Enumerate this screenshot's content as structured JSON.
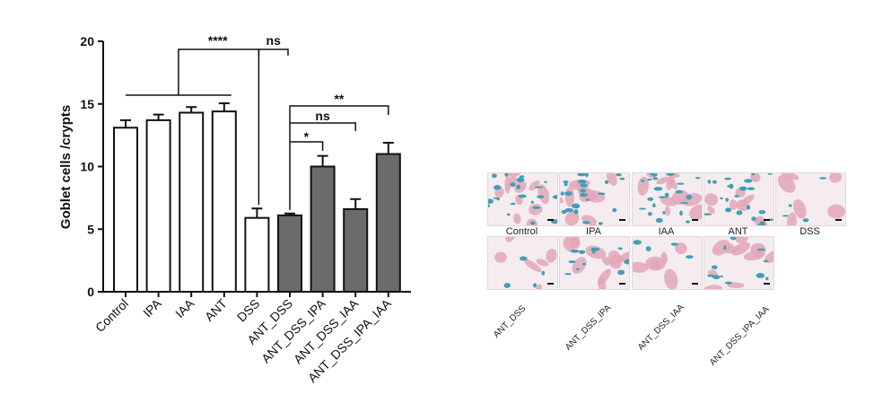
{
  "chart_data": {
    "type": "bar",
    "ylabel": "Goblet cells /crypts",
    "xlabel": "",
    "ylim": [
      0,
      20
    ],
    "yticks": [
      0,
      5,
      10,
      15,
      20
    ],
    "categories": [
      "Control",
      "IPA",
      "IAA",
      "ANT",
      "DSS",
      "ANT_DSS",
      "ANT_DSS_IPA",
      "ANT_DSS_IAA",
      "ANT_DSS_IPA_IAA"
    ],
    "values": [
      13.1,
      13.7,
      14.3,
      14.4,
      5.9,
      6.1,
      10.0,
      6.6,
      11.0
    ],
    "errors": [
      0.6,
      0.45,
      0.45,
      0.65,
      0.75,
      0.15,
      0.85,
      0.8,
      0.9
    ],
    "fills": [
      "#ffffff",
      "#ffffff",
      "#ffffff",
      "#ffffff",
      "#ffffff",
      "#6b6b6b",
      "#6b6b6b",
      "#6b6b6b",
      "#6b6b6b"
    ],
    "significance": [
      {
        "label": "****",
        "from": "Control-ANT group",
        "to": "DSS"
      },
      {
        "label": "ns",
        "from": "DSS",
        "to": "ANT_DSS"
      },
      {
        "label": "*",
        "from": "ANT_DSS",
        "to": "ANT_DSS_IPA"
      },
      {
        "label": "ns",
        "from": "ANT_DSS",
        "to": "ANT_DSS_IAA"
      },
      {
        "label": "**",
        "from": "ANT_DSS",
        "to": "ANT_DSS_IPA_IAA"
      }
    ],
    "grid": false,
    "legend": "none"
  },
  "histology": {
    "row1_labels": [
      "Control",
      "IPA",
      "IAA",
      "ANT",
      "DSS"
    ],
    "row2_labels": [
      "ANT_DSS",
      "ANT_DSS_IPA",
      "ANT_DSS_IAA",
      "ANT_DSS_IPA_IAA"
    ],
    "colors": {
      "stain": "#3f9fb7",
      "tissue": "#e2a7b8",
      "background": "#f4ecef"
    }
  }
}
